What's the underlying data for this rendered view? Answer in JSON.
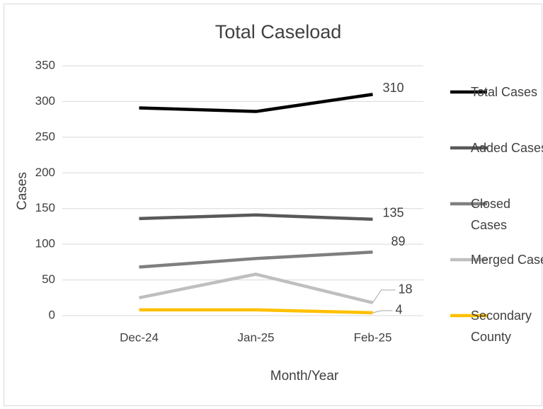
{
  "chart_data": {
    "type": "line",
    "title": "Total Caseload",
    "x_label": "Month/Year",
    "y_label": "Cases",
    "categories": [
      "Dec-24",
      "Jan-25",
      "Feb-25"
    ],
    "series": [
      {
        "name": "Total Cases",
        "color": "#000000",
        "values": [
          291,
          286,
          310
        ]
      },
      {
        "name": "Added Cases",
        "color": "#595959",
        "values": [
          136,
          141,
          135
        ]
      },
      {
        "name": "Closed Cases",
        "color": "#7f7f7f",
        "values": [
          68,
          80,
          89
        ]
      },
      {
        "name": "Merged Case",
        "color": "#bfbfbf",
        "values": [
          25,
          58,
          18
        ]
      },
      {
        "name": "Secondary County",
        "color": "#ffc000",
        "values": [
          8,
          8,
          4
        ]
      }
    ],
    "ylim": [
      0,
      350
    ],
    "yticks": [
      0,
      50,
      100,
      150,
      200,
      250,
      300,
      350
    ],
    "grid": true,
    "legend": "right"
  }
}
